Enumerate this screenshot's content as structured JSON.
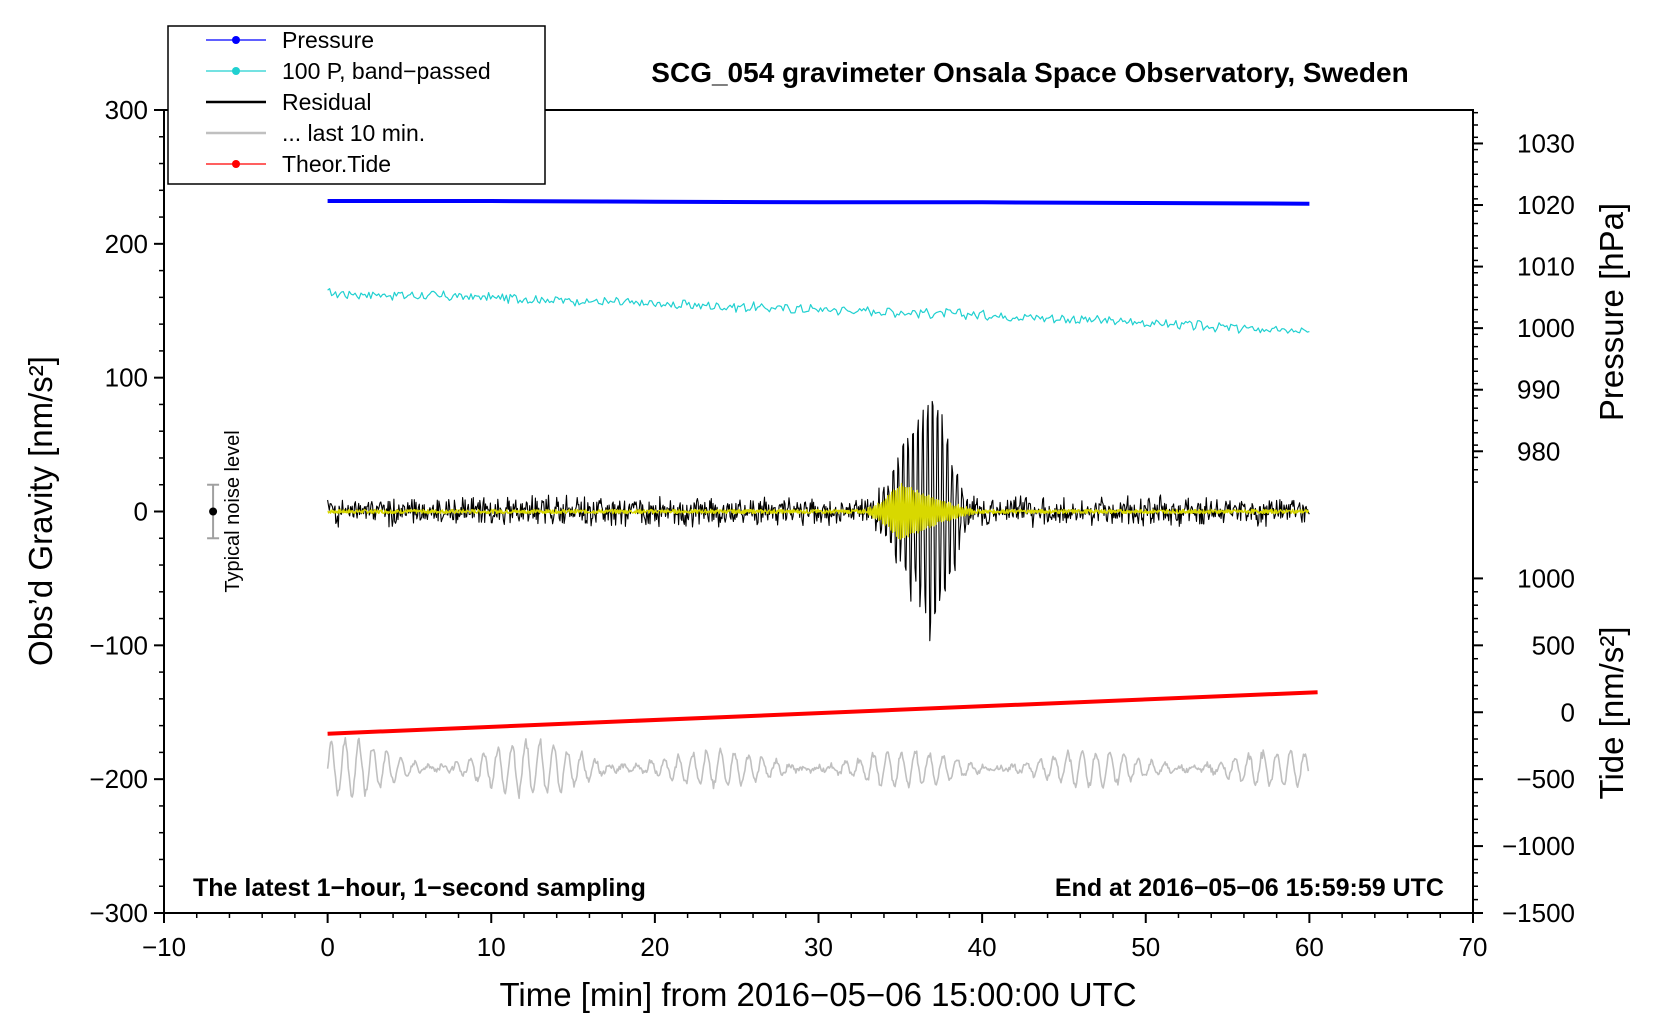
{
  "chart_data": {
    "type": "line",
    "title": "SCG_054 gravimeter Onsala Space Observatory, Sweden",
    "xlabel": "Time [min] from 2016−05−06 15:00:00 UTC",
    "ylabel_left": "Obs’d Gravity [nm/s²]",
    "ylabel_right_pressure": "Pressure [hPa]",
    "ylabel_right_tide": "Tide [nm/s²]",
    "xlim": [
      -10,
      70
    ],
    "ylim": [
      -300,
      300
    ],
    "x_ticks": [
      -10,
      0,
      10,
      20,
      30,
      40,
      50,
      60,
      70
    ],
    "x_tick_labels": [
      "−10",
      "0",
      "10",
      "20",
      "30",
      "40",
      "50",
      "60",
      "70"
    ],
    "y_ticks": [
      -300,
      -200,
      -100,
      0,
      100,
      200,
      300
    ],
    "y_tick_labels": [
      "−300",
      "−200",
      "−100",
      "0",
      "100",
      "200",
      "300"
    ],
    "pressure_axis": {
      "ticks": [
        980,
        990,
        1000,
        1010,
        1020,
        1030
      ],
      "tick_labels": [
        "980",
        "990",
        "1000",
        "1010",
        "1020",
        "1030"
      ],
      "gravity_equivalent_at_980": 45,
      "gravity_equivalent_at_1030": 275
    },
    "tide_axis": {
      "ticks": [
        -1500,
        -1000,
        -500,
        0,
        500,
        1000
      ],
      "tick_labels": [
        "−1500",
        "−1000",
        "−500",
        "0",
        "500",
        "1000"
      ],
      "gravity_equivalent_at_minus1500": -300,
      "gravity_equivalent_at_1000": -50
    },
    "legend": [
      {
        "label": "Pressure",
        "color": "#0000ff",
        "marker": true
      },
      {
        "label": "100 P, band−passed",
        "color": "#20d0d0",
        "marker": true
      },
      {
        "label": "Residual",
        "color": "#000000",
        "marker": false
      },
      {
        "label": "... last 10 min.",
        "color": "#c0c0c0",
        "marker": false
      },
      {
        "label": "Theor.Tide",
        "color": "#ff0000",
        "marker": true
      }
    ],
    "series": [
      {
        "name": "Pressure",
        "color": "#0000ff",
        "x": [
          0,
          10,
          20,
          30,
          40,
          50,
          60
        ],
        "y": [
          232,
          232,
          231.5,
          231,
          231,
          230.5,
          230
        ]
      },
      {
        "name": "100 P, band-passed",
        "color": "#20d0d0",
        "x": [
          0,
          10,
          20,
          30,
          40,
          50,
          60
        ],
        "y": [
          163,
          160,
          155,
          151,
          147,
          141,
          134
        ]
      },
      {
        "name": "Residual",
        "color": "#000000",
        "x_range": [
          0,
          60
        ],
        "noise_amplitude": 9,
        "wave_start": 32.5,
        "wave_peak": 37,
        "wave_end": 39.5,
        "wave_peak_amplitude": 115
      },
      {
        "name": "Residual filtered",
        "color": "#d8d800",
        "x_range": [
          0,
          60
        ],
        "wave_start": 32.5,
        "wave_peak": 35,
        "wave_end": 40,
        "wave_peak_amplitude": 20
      },
      {
        "name": "Theor.Tide",
        "color": "#ff0000",
        "x": [
          0,
          60.5
        ],
        "y": [
          -166,
          -135
        ]
      },
      {
        "name": "... last 10 min.",
        "color": "#c0c0c0",
        "x_range": [
          0,
          60
        ],
        "center": -192,
        "amplitude": 22
      }
    ],
    "noise_marker": {
      "x": -7,
      "y": 0,
      "range": [
        -20,
        20
      ],
      "label": "Typical noise level"
    },
    "annotations": [
      {
        "text": "The latest 1−hour, 1−second sampling",
        "position": "bottom-left"
      },
      {
        "text": "End at 2016−05−06 15:59:59 UTC",
        "position": "bottom-right"
      }
    ]
  }
}
